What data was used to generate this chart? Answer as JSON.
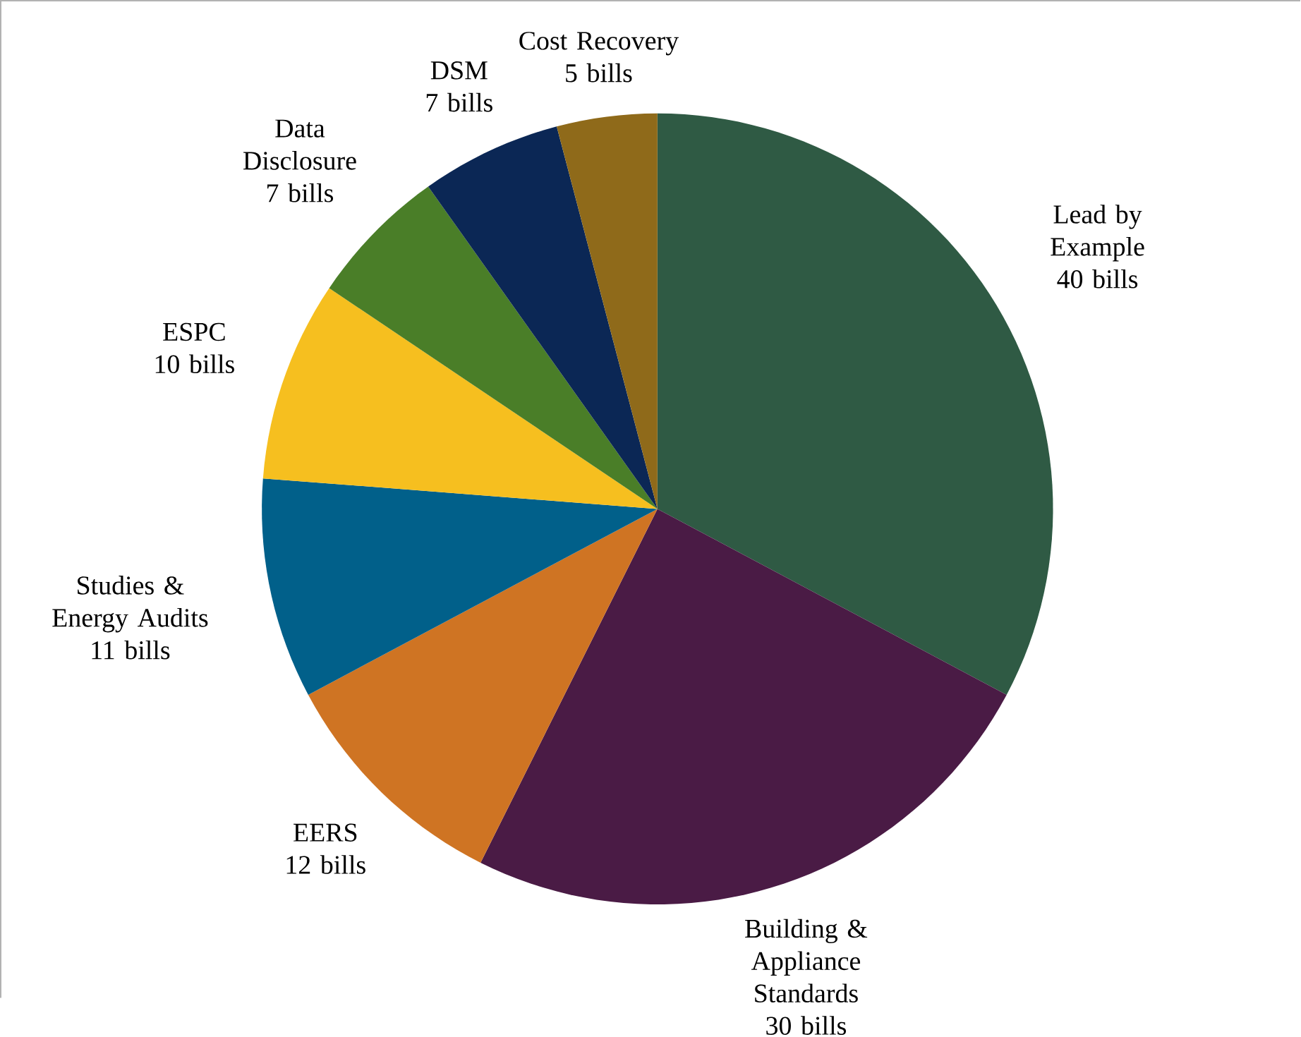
{
  "chart_data": {
    "type": "pie",
    "categories": [
      "Lead by Example",
      "Building & Appliance Standards",
      "EERS",
      "Studies & Energy Audits",
      "ESPC",
      "Data Disclosure",
      "DSM",
      "Cost Recovery"
    ],
    "values": [
      40,
      30,
      12,
      11,
      10,
      7,
      7,
      5
    ],
    "value_labels": [
      "40 bills",
      "30 bills",
      "12 bills",
      "11 bills",
      "10 bills",
      "7 bills",
      "7 bills",
      "5 bills"
    ],
    "colors": [
      "#2f5a44",
      "#4a1b45",
      "#cf7423",
      "#01608a",
      "#f6bf1f",
      "#4a7e28",
      "#0b2755",
      "#8f6a1a"
    ]
  }
}
